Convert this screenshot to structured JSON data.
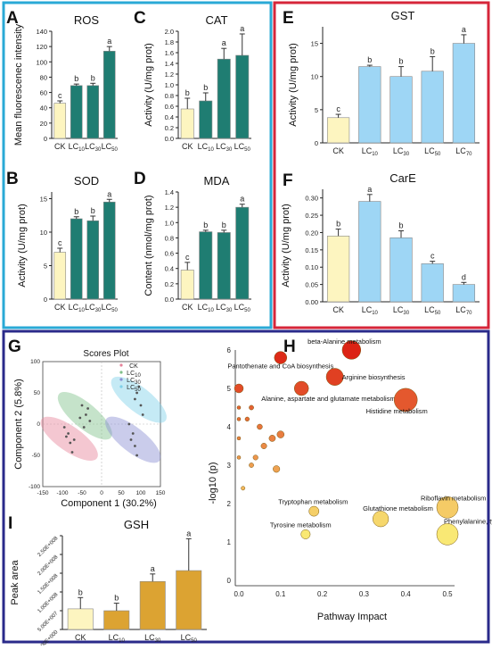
{
  "colors": {
    "cyan_frame": "#2aa9d6",
    "red_frame": "#d6263a",
    "navy_frame": "#2a2a8a",
    "ck_bar": "#fdf5c0",
    "teal_bar": "#1f7d72",
    "blue_bar": "#9ed6f5",
    "gold_bar": "#dca332"
  },
  "chart_data": [
    {
      "panel": "A",
      "type": "bar",
      "title": "ROS",
      "ylabel": "Mean fluorescenec intensity",
      "ylim": [
        0,
        140
      ],
      "yticks": [
        "0",
        "20",
        "40",
        "60",
        "80",
        "100",
        "120",
        "140"
      ],
      "categories": [
        "CK",
        "LC10",
        "LC30",
        "LC50"
      ],
      "values": [
        46,
        69,
        69,
        114
      ],
      "errors": [
        3,
        2,
        3,
        6
      ],
      "letters": [
        "c",
        "b",
        "b",
        "a"
      ]
    },
    {
      "panel": "C",
      "type": "bar",
      "title": "CAT",
      "ylabel": "Activity (U/mg prot)",
      "ylim": [
        0,
        2.0
      ],
      "yticks": [
        "0.0",
        "0.2",
        "0.4",
        "0.6",
        "0.8",
        "1.0",
        "1.2",
        "1.4",
        "1.6",
        "1.8",
        "2.0"
      ],
      "categories": [
        "CK",
        "LC10",
        "LC30",
        "LC50"
      ],
      "values": [
        0.55,
        0.7,
        1.48,
        1.55
      ],
      "errors": [
        0.2,
        0.15,
        0.2,
        0.4
      ],
      "letters": [
        "b",
        "b",
        "a",
        "a"
      ]
    },
    {
      "panel": "B",
      "type": "bar",
      "title": "SOD",
      "ylabel": "Activity (U/mg prot)",
      "ylim": [
        0,
        16
      ],
      "yticks": [
        "0",
        "5",
        "10",
        "15"
      ],
      "categories": [
        "CK",
        "LC10",
        "LC30",
        "LC50"
      ],
      "values": [
        7,
        12,
        11.7,
        14.5
      ],
      "errors": [
        0.6,
        0.3,
        0.7,
        0.4
      ],
      "letters": [
        "c",
        "b",
        "b",
        "a"
      ]
    },
    {
      "panel": "D",
      "type": "bar",
      "title": "MDA",
      "ylabel": "Content (nmol/mg prot)",
      "ylim": [
        0,
        1.4
      ],
      "yticks": [
        "0.0",
        "0.2",
        "0.4",
        "0.6",
        "0.8",
        "1.0",
        "1.2",
        "1.4"
      ],
      "categories": [
        "CK",
        "LC10",
        "LC30",
        "LC50"
      ],
      "values": [
        0.38,
        0.88,
        0.87,
        1.2
      ],
      "errors": [
        0.1,
        0.02,
        0.03,
        0.04
      ],
      "letters": [
        "c",
        "b",
        "b",
        "a"
      ]
    },
    {
      "panel": "E",
      "type": "bar",
      "title": "GST",
      "ylabel": "Activity (U/mg prot)",
      "ylim": [
        0,
        17.5
      ],
      "yticks": [
        "0",
        "5",
        "10",
        "15"
      ],
      "categories": [
        "CK",
        "LC10",
        "LC30",
        "LC50",
        "LC70"
      ],
      "values": [
        3.8,
        11.5,
        10,
        10.8,
        15
      ],
      "errors": [
        0.5,
        0.2,
        1.5,
        2.2,
        1.3
      ],
      "letters": [
        "c",
        "b",
        "b",
        "b",
        "a"
      ]
    },
    {
      "panel": "F",
      "type": "bar",
      "title": "CarE",
      "ylabel": "Activity (U/mg prot)",
      "ylim": [
        0,
        0.325
      ],
      "yticks": [
        "0.00",
        "0.05",
        "0.10",
        "0.15",
        "0.20",
        "0.25",
        "0.30"
      ],
      "categories": [
        "CK",
        "LC10",
        "LC30",
        "LC50",
        "LC70"
      ],
      "values": [
        0.19,
        0.29,
        0.185,
        0.11,
        0.05
      ],
      "errors": [
        0.02,
        0.02,
        0.02,
        0.007,
        0.006
      ],
      "letters": [
        "b",
        "a",
        "b",
        "c",
        "d"
      ]
    },
    {
      "panel": "I",
      "type": "bar",
      "title": "GSH",
      "ylabel": "Peak area",
      "ylim": [
        0,
        250000000
      ],
      "yticks": [
        "0.00E+000",
        "5.00E+007",
        "1.00E+008",
        "1.50E+008",
        "2.00E+008",
        "2.50E+008"
      ],
      "categories": [
        "CK",
        "LC10",
        "LC30",
        "LC50"
      ],
      "values": [
        55000000,
        50000000,
        128000000,
        157000000
      ],
      "errors": [
        30000000,
        20000000,
        20000000,
        85000000
      ],
      "letters": [
        "b",
        "b",
        "a",
        "a"
      ]
    },
    {
      "panel": "G",
      "type": "scatter",
      "title": "Scores Plot",
      "xlabel": "Component 1 (30.2%)",
      "ylabel": "Component 2 (5.8%)",
      "xlim": [
        -150,
        150
      ],
      "ylim": [
        -100,
        100
      ],
      "xticks": [
        "-150",
        "-100",
        "-50",
        "0",
        "50",
        "100",
        "150"
      ],
      "yticks": [
        "-100",
        "-50",
        "0",
        "50",
        "100"
      ],
      "legend": [
        "CK",
        "LC10",
        "LC30",
        "LC50"
      ],
      "series": [
        {
          "name": "CK",
          "points": [
            [
              -95,
              -5
            ],
            [
              -85,
              -15
            ],
            [
              -80,
              -30
            ],
            [
              -75,
              -45
            ],
            [
              -90,
              -20
            ],
            [
              -70,
              -25
            ]
          ]
        },
        {
          "name": "LC10",
          "points": [
            [
              -50,
              30
            ],
            [
              -40,
              15
            ],
            [
              -30,
              5
            ],
            [
              -45,
              -5
            ],
            [
              -35,
              25
            ],
            [
              -55,
              10
            ]
          ]
        },
        {
          "name": "LC30",
          "points": [
            [
              70,
              0
            ],
            [
              80,
              -15
            ],
            [
              85,
              -35
            ],
            [
              90,
              -50
            ],
            [
              75,
              -25
            ]
          ]
        },
        {
          "name": "LC50",
          "points": [
            [
              85,
              40
            ],
            [
              95,
              60
            ],
            [
              100,
              30
            ],
            [
              105,
              15
            ],
            [
              90,
              50
            ]
          ]
        }
      ]
    },
    {
      "panel": "H",
      "type": "scatter",
      "xlabel": "Pathway Impact",
      "ylabel": "-log10 (p)",
      "xlim": [
        0,
        0.5
      ],
      "ylim": [
        0,
        6
      ],
      "xticks": [
        "0.0",
        "0.1",
        "0.2",
        "0.3",
        "0.4",
        "0.5"
      ],
      "yticks": [
        "0",
        "1",
        "2",
        "3",
        "4",
        "5",
        "6"
      ],
      "points": [
        {
          "x": 0.27,
          "y": 6.0,
          "label": "beta-Alanine metabolism"
        },
        {
          "x": 0.1,
          "y": 5.8,
          "label": "Pantothenate and CoA biosynthesis"
        },
        {
          "x": 0.23,
          "y": 5.3,
          "label": "Arginine biosynthesis"
        },
        {
          "x": 0.15,
          "y": 5.0,
          "label": "Alanine, aspartate and glutamate metabolism"
        },
        {
          "x": 0.4,
          "y": 4.7,
          "label": "Histidine metabolism"
        },
        {
          "x": 0.0,
          "y": 5.0,
          "label": ""
        },
        {
          "x": 0.0,
          "y": 4.5,
          "label": ""
        },
        {
          "x": 0.03,
          "y": 4.5,
          "label": ""
        },
        {
          "x": 0.0,
          "y": 4.2,
          "label": ""
        },
        {
          "x": 0.02,
          "y": 4.2,
          "label": ""
        },
        {
          "x": 0.05,
          "y": 4.0,
          "label": ""
        },
        {
          "x": 0.0,
          "y": 3.7,
          "label": ""
        },
        {
          "x": 0.1,
          "y": 3.8,
          "label": ""
        },
        {
          "x": 0.08,
          "y": 3.7,
          "label": ""
        },
        {
          "x": 0.06,
          "y": 3.5,
          "label": ""
        },
        {
          "x": 0.04,
          "y": 3.2,
          "label": ""
        },
        {
          "x": 0.03,
          "y": 3.0,
          "label": ""
        },
        {
          "x": 0.0,
          "y": 3.2,
          "label": ""
        },
        {
          "x": 0.09,
          "y": 2.9,
          "label": ""
        },
        {
          "x": 0.01,
          "y": 2.4,
          "label": ""
        },
        {
          "x": 0.18,
          "y": 1.8,
          "label": "Tryptophan metabolism"
        },
        {
          "x": 0.5,
          "y": 1.9,
          "label": "Riboflavin metabolism"
        },
        {
          "x": 0.34,
          "y": 1.6,
          "label": "Glutathione metabolism"
        },
        {
          "x": 0.5,
          "y": 1.2,
          "label": "Phenylalanine, tyrosine and tryptophan biosynthesis"
        },
        {
          "x": 0.16,
          "y": 1.2,
          "label": "Tyrosine metabolism"
        }
      ]
    }
  ],
  "panel_letters": [
    "A",
    "B",
    "C",
    "D",
    "E",
    "F",
    "G",
    "H",
    "I"
  ]
}
